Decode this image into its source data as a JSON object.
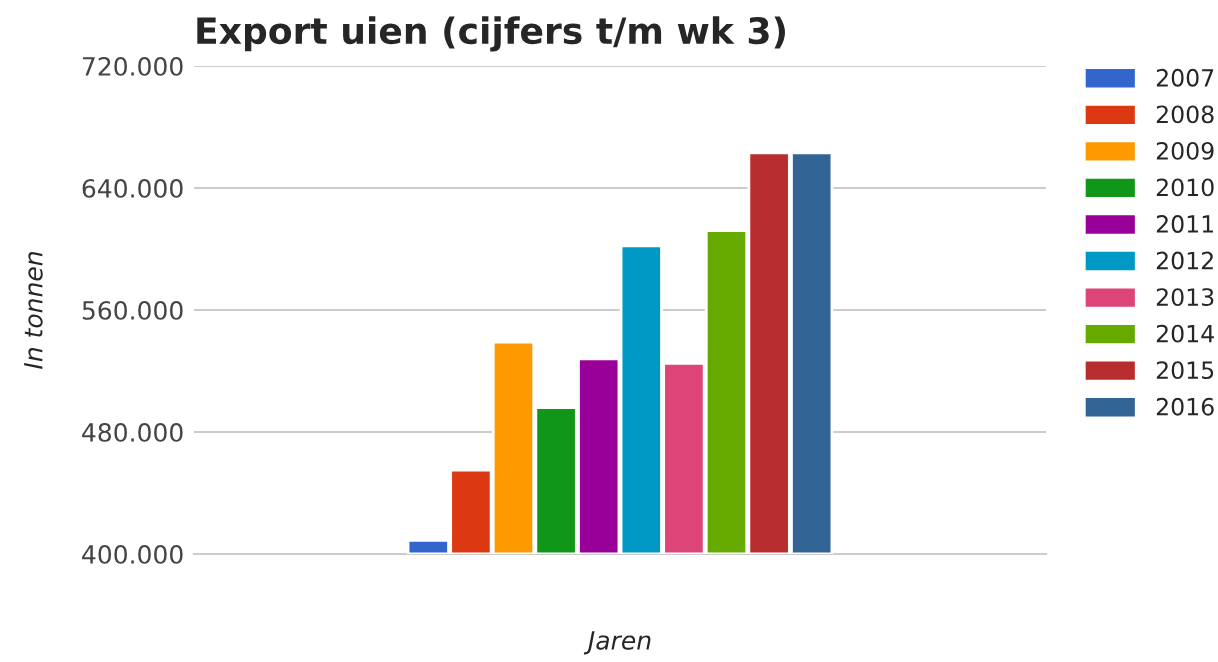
{
  "chart_data": {
    "type": "bar",
    "title": "Export uien (cijfers t/m wk 3)",
    "xlabel": "Jaren",
    "ylabel": "In tonnen",
    "categories": [
      null
    ],
    "series": [
      {
        "name": "2007",
        "color": "#3366cc",
        "values": [
          409000
        ]
      },
      {
        "name": "2008",
        "color": "#dc3912",
        "values": [
          455000
        ]
      },
      {
        "name": "2009",
        "color": "#ff9900",
        "values": [
          539000
        ]
      },
      {
        "name": "2010",
        "color": "#109618",
        "values": [
          496000
        ]
      },
      {
        "name": "2011",
        "color": "#990099",
        "values": [
          528000
        ]
      },
      {
        "name": "2012",
        "color": "#0099c6",
        "values": [
          602000
        ]
      },
      {
        "name": "2013",
        "color": "#dd4477",
        "values": [
          525000
        ]
      },
      {
        "name": "2014",
        "color": "#66aa00",
        "values": [
          612000
        ]
      },
      {
        "name": "2015",
        "color": "#b82e2e",
        "values": [
          663000
        ]
      },
      {
        "name": "2016",
        "color": "#316395",
        "values": [
          663000
        ]
      }
    ],
    "ylim": [
      400000,
      720000
    ],
    "yticks": [
      {
        "value": 400000,
        "label": "400.000"
      },
      {
        "value": 480000,
        "label": "480.000"
      },
      {
        "value": 560000,
        "label": "560.000"
      },
      {
        "value": 640000,
        "label": "640.000"
      },
      {
        "value": 720000,
        "label": "720.000"
      }
    ],
    "grid": "y",
    "legend": "right"
  }
}
